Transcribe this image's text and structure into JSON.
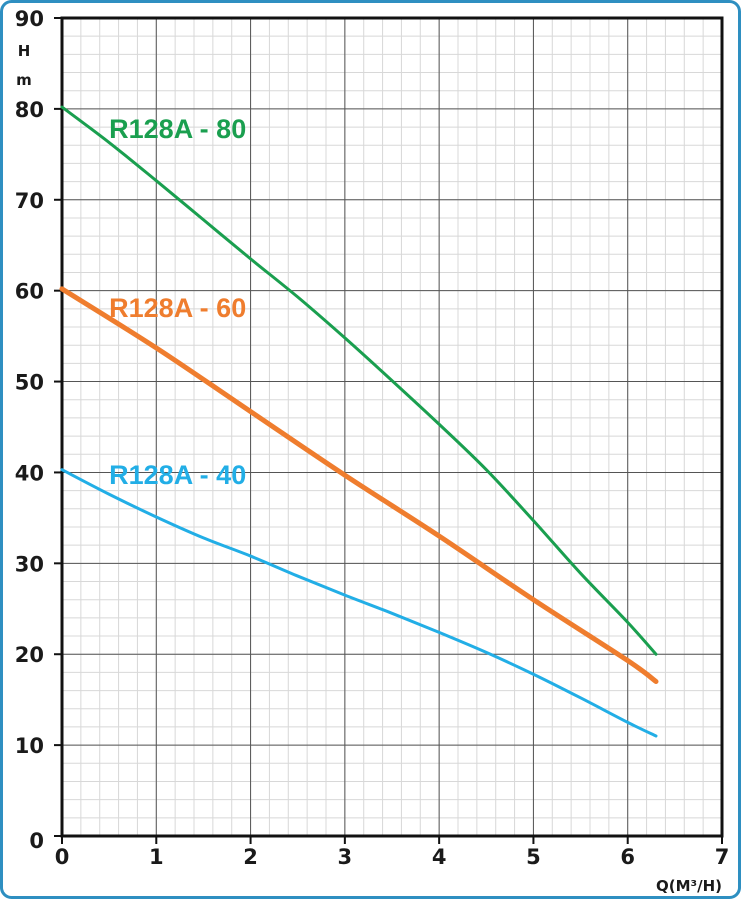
{
  "chart_data": {
    "type": "line",
    "title": "",
    "xlabel": "Q(M³/H)",
    "ylabel_line1": "H",
    "ylabel_line2": "m",
    "xlim": [
      0,
      7
    ],
    "ylim": [
      0,
      90
    ],
    "x_ticks": [
      "0",
      "1",
      "2",
      "3",
      "4",
      "5",
      "6",
      "7"
    ],
    "y_ticks": [
      "0",
      "10",
      "20",
      "30",
      "40",
      "50",
      "60",
      "70",
      "80",
      "90"
    ],
    "grid": true,
    "minor_grid": true,
    "series": [
      {
        "name": "R128A - 80",
        "color": "#1a9f4f",
        "x": [
          0,
          0.5,
          1,
          1.5,
          2,
          2.5,
          3,
          3.5,
          4,
          4.5,
          5,
          5.5,
          6,
          6.3
        ],
        "y": [
          80.2,
          76.3,
          72.1,
          67.8,
          63.5,
          59.3,
          54.8,
          50.1,
          45.3,
          40.3,
          34.7,
          28.9,
          23.5,
          20
        ]
      },
      {
        "name": "R128A - 60",
        "color": "#ef7d2e",
        "x": [
          0,
          1,
          2,
          3,
          4,
          5,
          6,
          6.3
        ],
        "y": [
          60.2,
          53.7,
          46.7,
          39.7,
          33,
          26,
          19.3,
          17
        ]
      },
      {
        "name": "R128A - 40",
        "color": "#22aee6",
        "x": [
          0,
          0.5,
          1,
          1.5,
          2,
          2.5,
          3,
          3.5,
          4,
          4.5,
          5,
          5.5,
          6,
          6.3
        ],
        "y": [
          40.3,
          37.6,
          35.1,
          32.8,
          30.8,
          28.6,
          26.5,
          24.5,
          22.4,
          20.2,
          17.8,
          15.2,
          12.5,
          11
        ]
      }
    ]
  },
  "colors": {
    "frame_border": "#2e8fc1",
    "axis": "#111111",
    "major_grid": "#555555",
    "minor_grid": "#d8d8d8"
  }
}
